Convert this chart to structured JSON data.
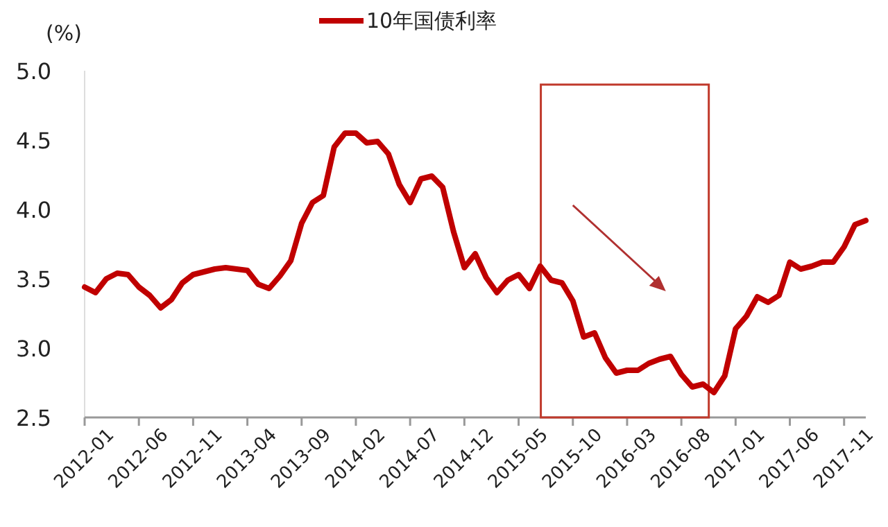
{
  "chart_data": {
    "type": "line",
    "ylabel": "(%)",
    "legend": "top",
    "grid": false,
    "marker": "none",
    "line_style": "solid",
    "categories": [
      "2012-01",
      null,
      null,
      null,
      null,
      "2012-06",
      null,
      null,
      null,
      null,
      "2012-11",
      null,
      null,
      null,
      null,
      "2013-04",
      null,
      null,
      null,
      null,
      "2013-09",
      null,
      null,
      null,
      null,
      "2014-02",
      null,
      null,
      null,
      null,
      "2014-07",
      null,
      null,
      null,
      null,
      "2014-12",
      null,
      null,
      null,
      null,
      "2015-05",
      null,
      null,
      null,
      null,
      "2015-10",
      null,
      null,
      null,
      null,
      "2016-03",
      null,
      null,
      null,
      null,
      "2016-08",
      null,
      null,
      null,
      null,
      "2017-01",
      null,
      null,
      null,
      null,
      "2017-06",
      null,
      null,
      null,
      null,
      "2017-11",
      null,
      null
    ],
    "ylim": [
      2.5,
      5.0
    ],
    "yticks": [
      {
        "value": 2.5,
        "label": "2.5"
      },
      {
        "value": 3.0,
        "label": "3.0"
      },
      {
        "value": 3.5,
        "label": "3.5"
      },
      {
        "value": 4.0,
        "label": "4.0"
      },
      {
        "value": 4.5,
        "label": "4.5"
      },
      {
        "value": 5.0,
        "label": "5.0"
      }
    ],
    "series": [
      {
        "name": "10年国债利率",
        "color": "#c00000",
        "values": [
          3.44,
          3.4,
          3.5,
          3.54,
          3.53,
          3.44,
          3.38,
          3.29,
          3.35,
          3.47,
          3.53,
          3.55,
          3.57,
          3.58,
          3.57,
          3.56,
          3.46,
          3.43,
          3.52,
          3.63,
          3.9,
          4.05,
          4.1,
          4.45,
          4.55,
          4.55,
          4.48,
          4.49,
          4.4,
          4.18,
          4.05,
          4.22,
          4.24,
          4.16,
          3.84,
          3.58,
          3.68,
          3.51,
          3.4,
          3.49,
          3.53,
          3.43,
          3.59,
          3.49,
          3.47,
          3.34,
          3.08,
          3.11,
          2.93,
          2.82,
          2.84,
          2.84,
          2.89,
          2.92,
          2.94,
          2.81,
          2.72,
          2.74,
          2.68,
          2.8,
          3.14,
          3.23,
          3.37,
          3.33,
          3.38,
          3.62,
          3.57,
          3.59,
          3.62,
          3.62,
          3.73,
          3.89,
          3.92
        ]
      }
    ]
  }
}
